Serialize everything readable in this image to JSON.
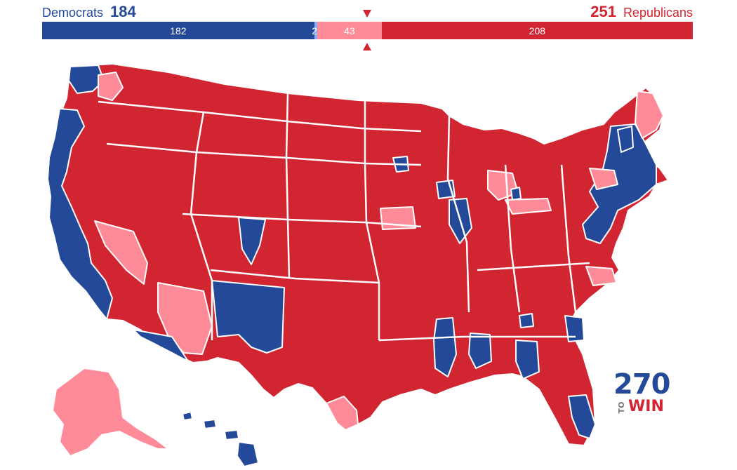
{
  "header": {
    "democrats": {
      "label": "Democrats",
      "total": "184"
    },
    "republicans": {
      "label": "Republicans",
      "total": "251"
    }
  },
  "bar": {
    "safe_dem": {
      "label": "182",
      "seats": 182
    },
    "lean_dem": {
      "label": "2",
      "seats": 2
    },
    "lean_rep": {
      "label": "43",
      "seats": 43
    },
    "safe_rep": {
      "label": "208",
      "seats": 208
    },
    "majority_marker": "triangle-down-icon"
  },
  "colors": {
    "safe_dem": "#244999",
    "lean_dem": "#8aafff",
    "lean_rep": "#ff8b98",
    "safe_rep": "#d22532",
    "border": "#ffffff"
  },
  "map": {
    "type": "us-congressional-districts",
    "regions": [
      {
        "name": "washington",
        "rating": "safe_rep"
      },
      {
        "name": "oregon",
        "rating": "safe_rep"
      },
      {
        "name": "california",
        "rating": "safe_rep"
      },
      {
        "name": "nevada",
        "rating": "lean_rep"
      },
      {
        "name": "arizona",
        "rating": "lean_rep"
      },
      {
        "name": "alaska",
        "rating": "lean_rep"
      },
      {
        "name": "hawaii",
        "rating": "safe_dem"
      },
      {
        "name": "new-mexico",
        "rating": "safe_dem"
      },
      {
        "name": "maine",
        "rating": "lean_rep"
      }
    ]
  },
  "logo": {
    "number": "270",
    "to": "TO",
    "win": "WIN"
  }
}
